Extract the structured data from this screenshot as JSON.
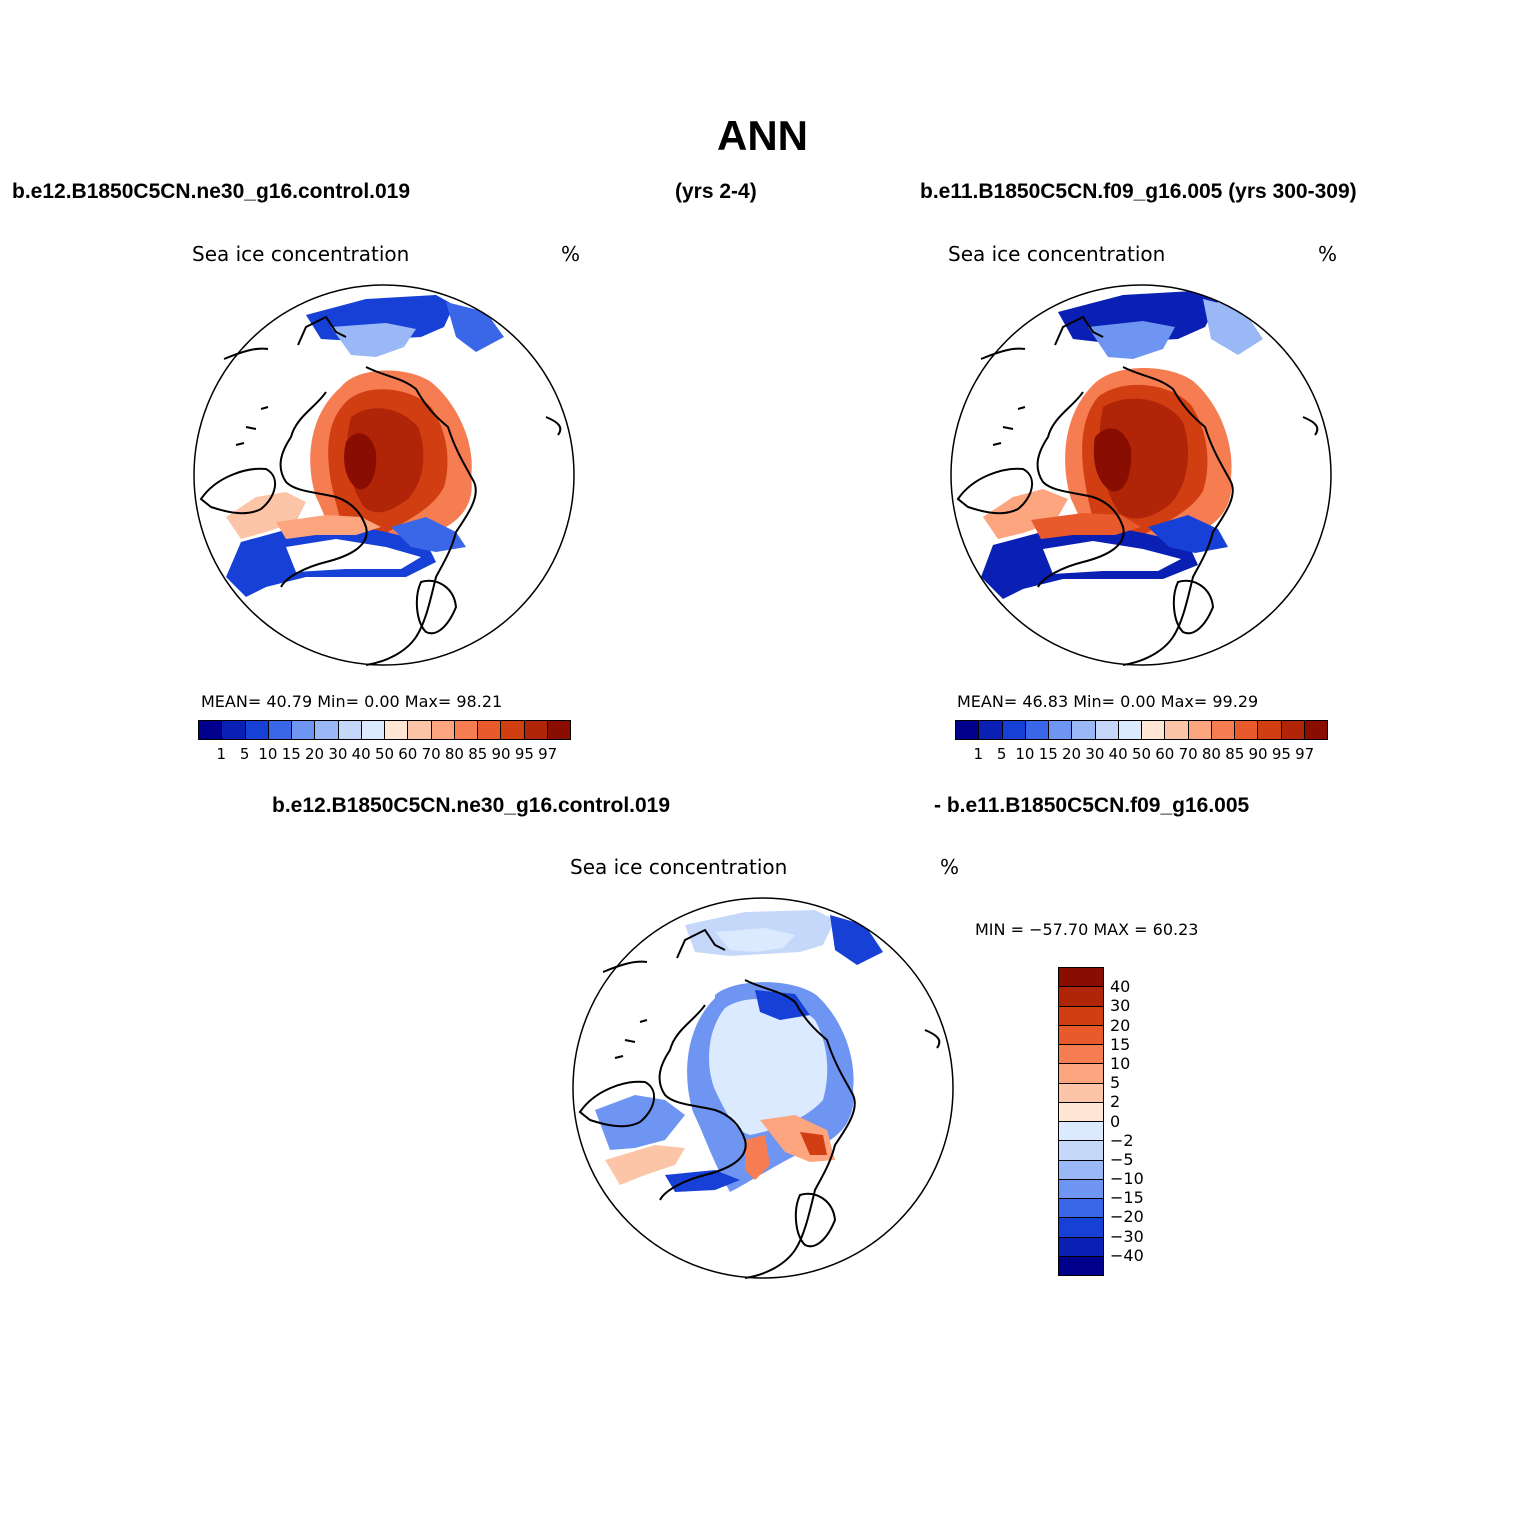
{
  "title": "ANN",
  "header_left": "b.e12.B1850C5CN.ne30_g16.control.019",
  "header_mid": "(yrs 2-4)",
  "header_right": "b.e11.B1850C5CN.f09_g16.005 (yrs 300-309)",
  "diff_header_left": "b.e12.B1850C5CN.ne30_g16.control.019",
  "diff_header_right": "- b.e11.B1850C5CN.f09_g16.005",
  "panels": [
    {
      "subtitle": "Sea ice concentration",
      "unit": "%",
      "stats": "MEAN=   40.79   Min=     0.00    Max=   98.21"
    },
    {
      "subtitle": "Sea ice concentration",
      "unit": "%",
      "stats": "MEAN=   46.83   Min=     0.00    Max=   99.29"
    }
  ],
  "diff_panel": {
    "subtitle": "Sea ice concentration",
    "unit": "%",
    "stats": "MIN  =  −57.70  MAX  =   60.23"
  },
  "abs_colorbar": {
    "labels": [
      "1",
      "5",
      "10",
      "15",
      "20",
      "30",
      "40",
      "50",
      "60",
      "70",
      "80",
      "85",
      "90",
      "95",
      "97"
    ],
    "colors": [
      "#00008c",
      "#0a1fb4",
      "#1740d6",
      "#3a66e8",
      "#6f95f2",
      "#9ab8f6",
      "#c5d8fa",
      "#dceaff",
      "#ffe6d5",
      "#fcc5a8",
      "#fca57f",
      "#f67d52",
      "#e85a2c",
      "#d13e11",
      "#b02507",
      "#8a0d02"
    ]
  },
  "diff_colorbar": {
    "labels": [
      "40",
      "30",
      "20",
      "15",
      "10",
      "5",
      "2",
      "0",
      "−2",
      "−5",
      "−10",
      "−15",
      "−20",
      "−30",
      "−40"
    ],
    "colors": [
      "#8a0d02",
      "#b02507",
      "#d13e11",
      "#e85a2c",
      "#f67d52",
      "#fca57f",
      "#fcc5a8",
      "#ffe6d5",
      "#dceaff",
      "#c5d8fa",
      "#9ab8f6",
      "#6f95f2",
      "#3a66e8",
      "#1740d6",
      "#0a1fb4",
      "#00008c"
    ]
  }
}
